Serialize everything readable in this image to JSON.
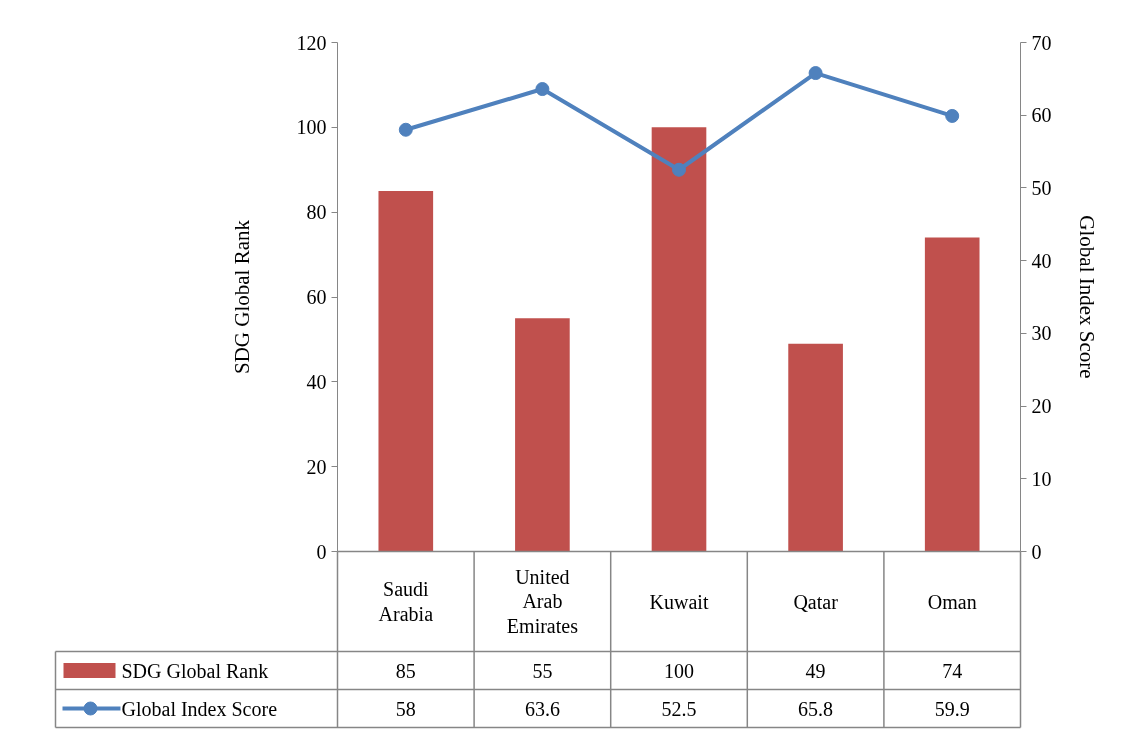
{
  "chart_data": {
    "type": "bar",
    "categories": [
      "Saudi Arabia",
      "United Arab Emirates",
      "Kuwait",
      "Qatar",
      "Oman"
    ],
    "series": [
      {
        "name": "SDG Global Rank",
        "color": "#c0504d",
        "values": [
          85,
          55,
          100,
          49,
          74
        ]
      },
      {
        "name": "Global Index Score",
        "type": "line",
        "axis": "y2",
        "color": "#4f81bd",
        "values": [
          58,
          63.6,
          52.5,
          65.8,
          59.9
        ]
      }
    ],
    "ylabel": "SDG Global Rank",
    "y2label": "Global Index Score",
    "ylim": [
      0,
      120
    ],
    "yticks": [
      0,
      20,
      40,
      60,
      80,
      100,
      120
    ],
    "y2lim": [
      0,
      70
    ],
    "y2ticks": [
      0,
      10,
      20,
      30,
      40,
      50,
      60,
      70
    ],
    "data_labels": true,
    "legend": "bottom",
    "grid": false,
    "marker": "circle",
    "line_style": "solid"
  }
}
